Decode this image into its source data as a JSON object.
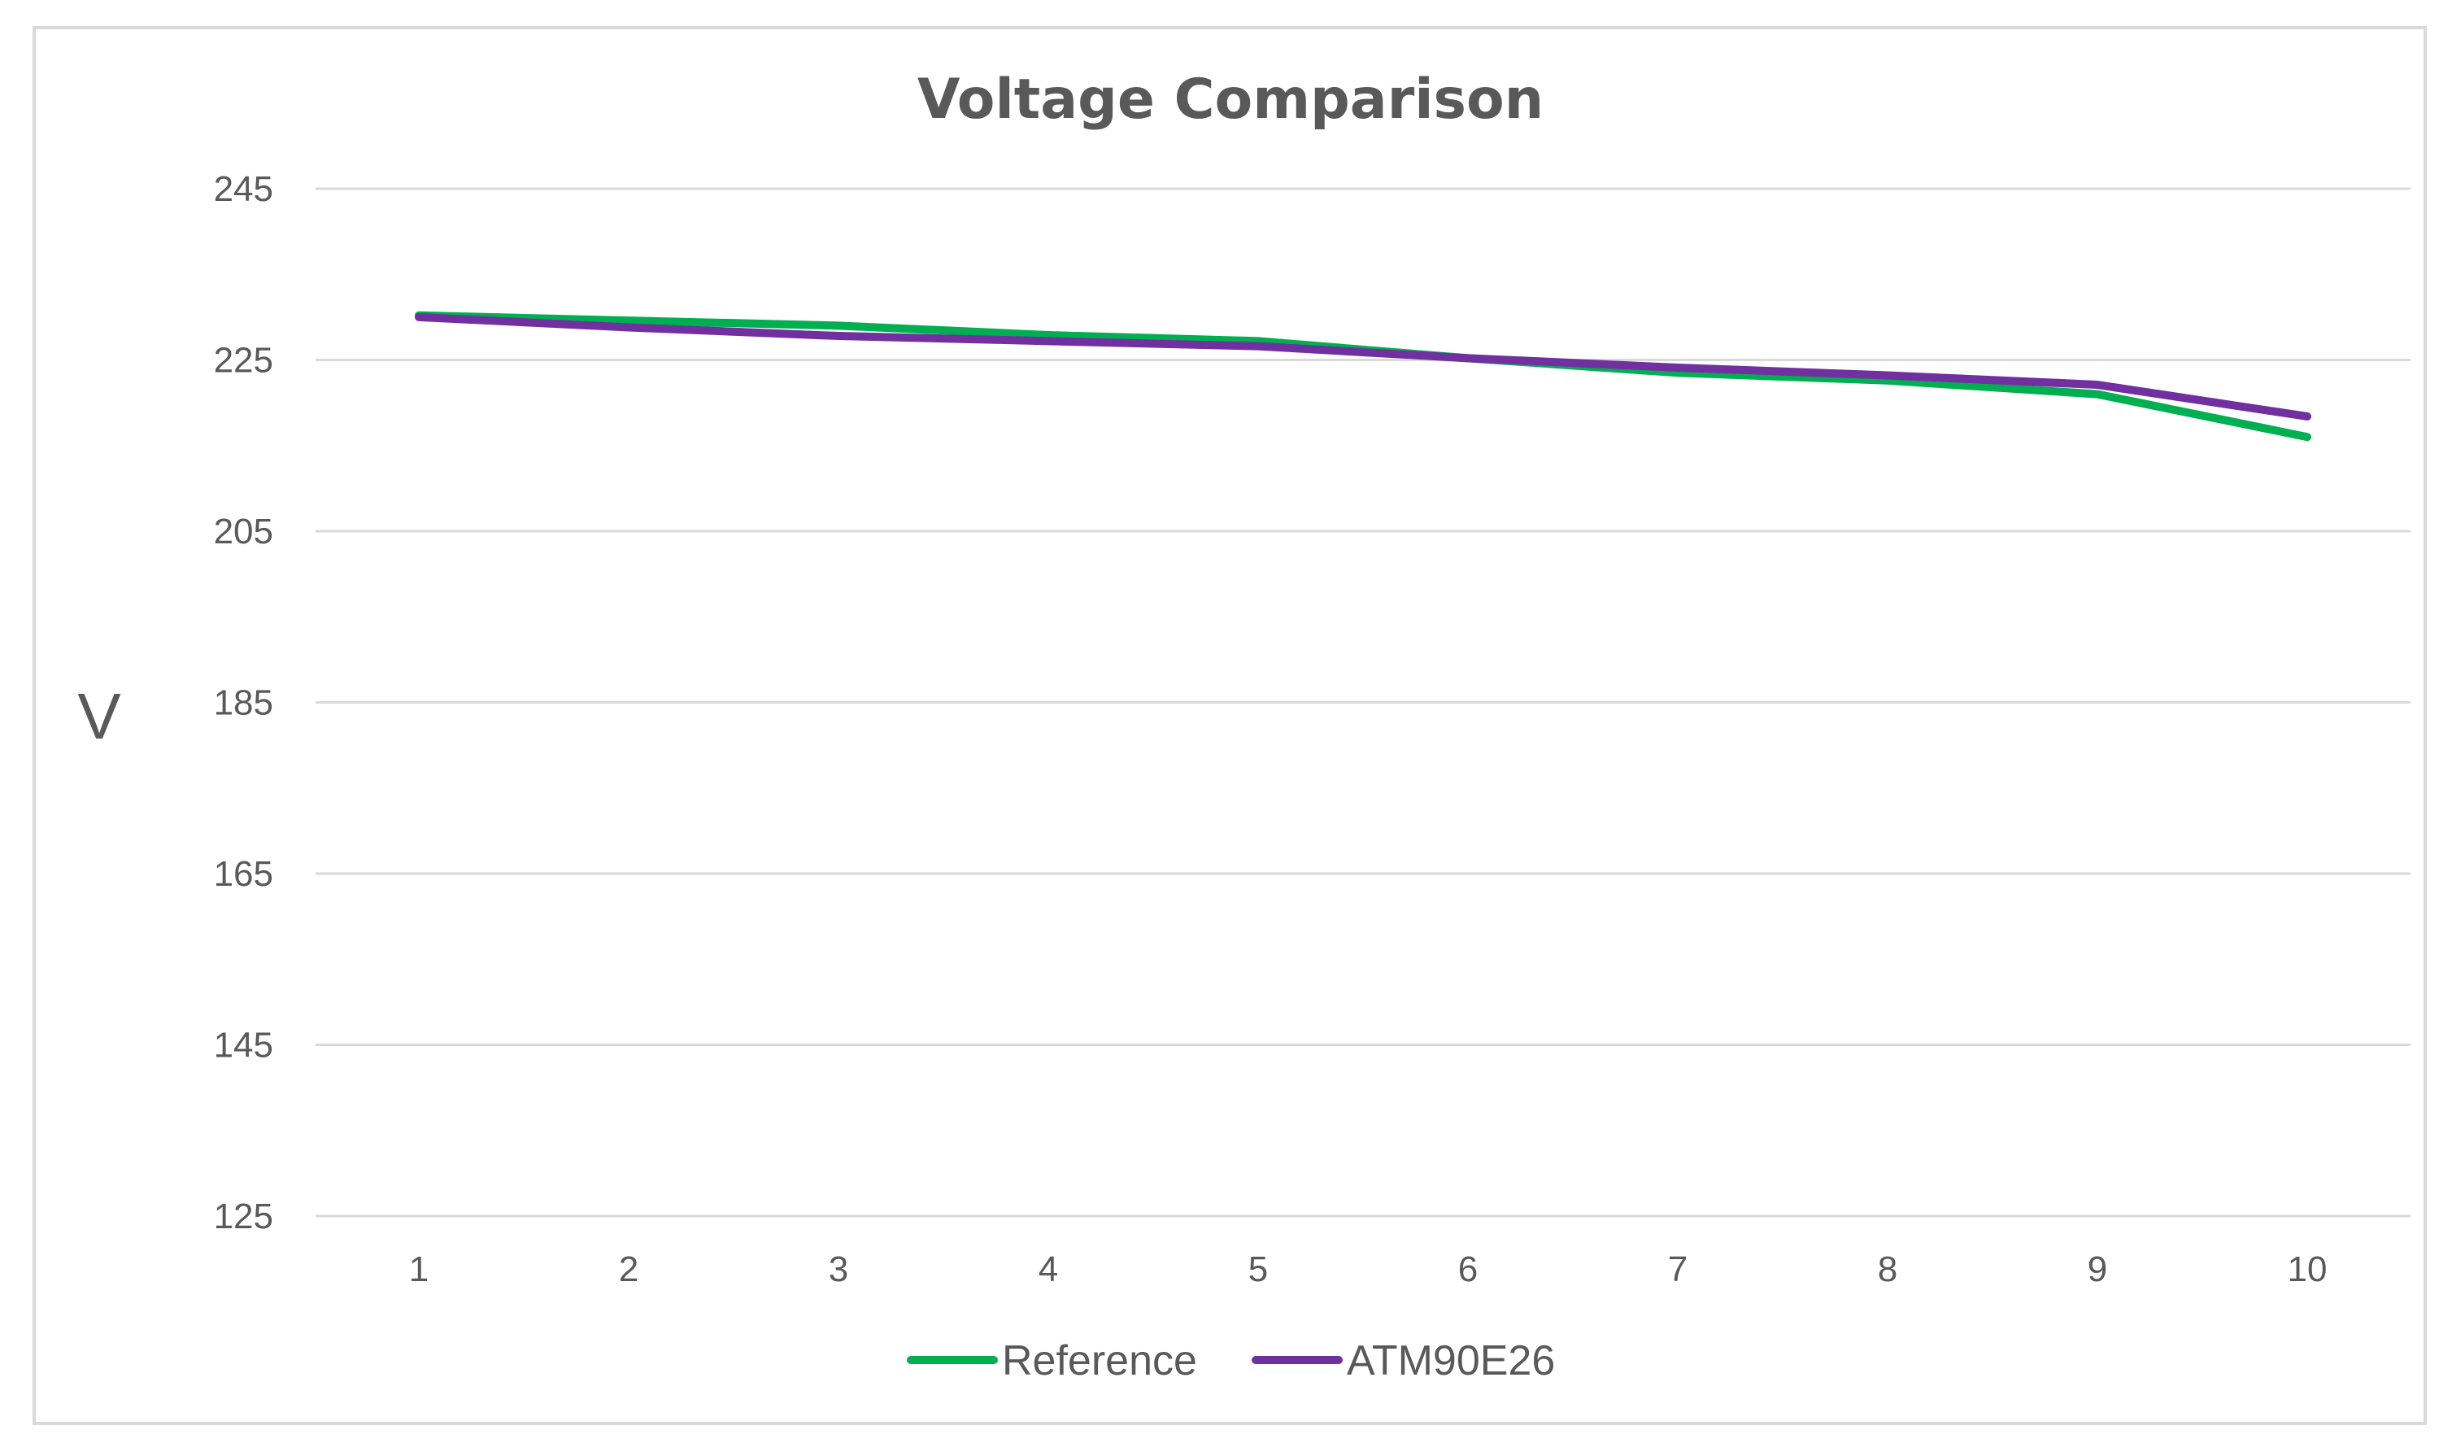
{
  "chart_data": {
    "type": "line",
    "title": "Voltage Comparison",
    "xlabel": "",
    "ylabel": "V",
    "categories": [
      "1",
      "2",
      "3",
      "4",
      "5",
      "6",
      "7",
      "8",
      "9",
      "10"
    ],
    "y_ticks": [
      "245",
      "225",
      "205",
      "185",
      "165",
      "145",
      "125"
    ],
    "ylim": [
      125,
      245
    ],
    "grid": true,
    "legend_position": "bottom",
    "series": [
      {
        "name": "Reference",
        "color": "#00b050",
        "values": [
          230.2,
          229.6,
          229.0,
          227.9,
          227.2,
          225.2,
          223.5,
          222.6,
          221.0,
          216.0
        ]
      },
      {
        "name": "ATM90E26",
        "color": "#7030a0",
        "values": [
          230.0,
          228.8,
          227.8,
          227.2,
          226.6,
          225.2,
          224.1,
          223.2,
          222.1,
          218.4
        ]
      }
    ]
  }
}
